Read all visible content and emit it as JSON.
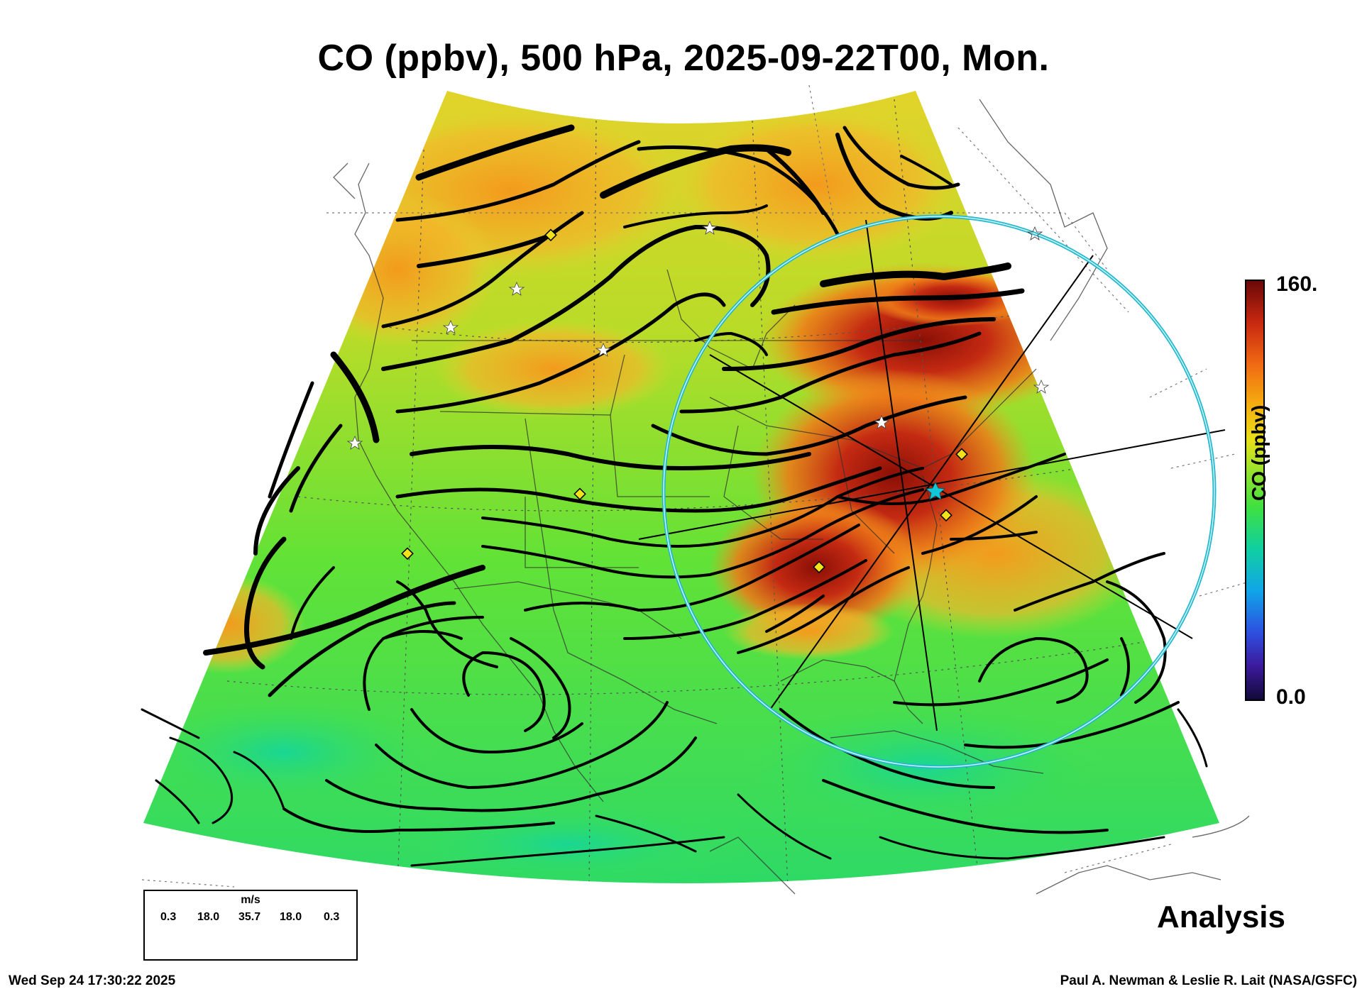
{
  "title": "CO (ppbv), 500 hPa, 2025-09-22T00, Mon.",
  "colorbar": {
    "label": "CO (ppbv)",
    "max_label": "160.",
    "min_label": "0.0",
    "range": [
      0,
      160
    ],
    "colors": [
      "#120a38",
      "#3c1a9c",
      "#2d4fe0",
      "#10a5e8",
      "#10cfa0",
      "#3fe040",
      "#a6e32a",
      "#e8e018",
      "#f5b010",
      "#f06a12",
      "#c82810",
      "#6a0808"
    ]
  },
  "wind_legend": {
    "unit": "m/s",
    "values": [
      "0.3",
      "18.0",
      "35.7",
      "18.0",
      "0.3"
    ]
  },
  "product": "Analysis",
  "timestamp": "Wed Sep 24 17:30:22 2025",
  "credit": "Paul A. Newman & Leslie R. Lait (NASA/GSFC)",
  "colors": {
    "background_field": "#52e23a",
    "plume": "#c42a12",
    "streamline": "#000000",
    "range_ring": "#27b8cc",
    "station_marker": "#f2e21a"
  },
  "icons": {
    "site_marker": "yellow-diamond-icon",
    "city_marker": "white-star-icon",
    "center_marker": "cyan-star-icon"
  }
}
